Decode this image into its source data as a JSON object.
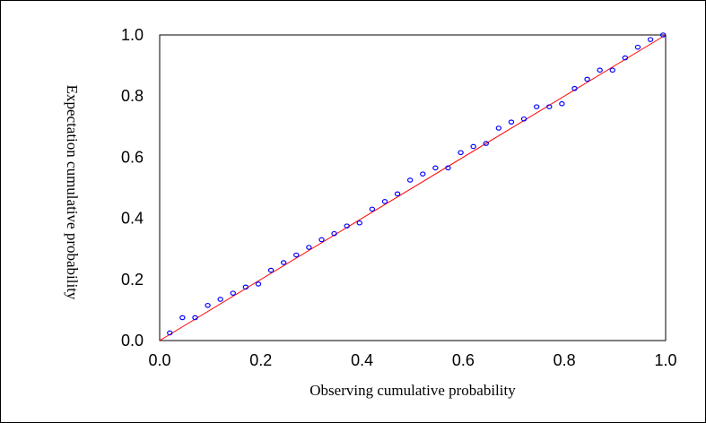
{
  "chart_data": {
    "type": "scatter",
    "title": "",
    "xlabel": "Observing cumulative probability",
    "ylabel": "Expectation cumulative probability",
    "xlim": [
      0.0,
      1.0
    ],
    "ylim": [
      0.0,
      1.0
    ],
    "x_ticks": [
      "0.0",
      "0.2",
      "0.4",
      "0.6",
      "0.8",
      "1.0"
    ],
    "y_ticks": [
      "0.0",
      "0.2",
      "0.4",
      "0.6",
      "0.8",
      "1.0"
    ],
    "grid": false,
    "legend": "none",
    "reference_line": {
      "from": [
        0.0,
        0.0
      ],
      "to": [
        1.0,
        1.0
      ],
      "color": "#ff0000"
    },
    "marker_color": "#0000ff",
    "points": [
      [
        0.02,
        0.025
      ],
      [
        0.045,
        0.075
      ],
      [
        0.07,
        0.075
      ],
      [
        0.095,
        0.115
      ],
      [
        0.12,
        0.135
      ],
      [
        0.145,
        0.155
      ],
      [
        0.17,
        0.175
      ],
      [
        0.195,
        0.185
      ],
      [
        0.22,
        0.23
      ],
      [
        0.245,
        0.255
      ],
      [
        0.27,
        0.28
      ],
      [
        0.295,
        0.305
      ],
      [
        0.32,
        0.33
      ],
      [
        0.345,
        0.35
      ],
      [
        0.37,
        0.375
      ],
      [
        0.395,
        0.385
      ],
      [
        0.42,
        0.43
      ],
      [
        0.445,
        0.455
      ],
      [
        0.47,
        0.48
      ],
      [
        0.495,
        0.525
      ],
      [
        0.52,
        0.545
      ],
      [
        0.545,
        0.565
      ],
      [
        0.57,
        0.565
      ],
      [
        0.595,
        0.615
      ],
      [
        0.62,
        0.635
      ],
      [
        0.645,
        0.645
      ],
      [
        0.67,
        0.695
      ],
      [
        0.695,
        0.715
      ],
      [
        0.72,
        0.725
      ],
      [
        0.745,
        0.765
      ],
      [
        0.77,
        0.765
      ],
      [
        0.795,
        0.775
      ],
      [
        0.82,
        0.825
      ],
      [
        0.845,
        0.855
      ],
      [
        0.87,
        0.885
      ],
      [
        0.895,
        0.885
      ],
      [
        0.92,
        0.925
      ],
      [
        0.945,
        0.96
      ],
      [
        0.97,
        0.985
      ],
      [
        0.995,
        1.0
      ]
    ]
  }
}
